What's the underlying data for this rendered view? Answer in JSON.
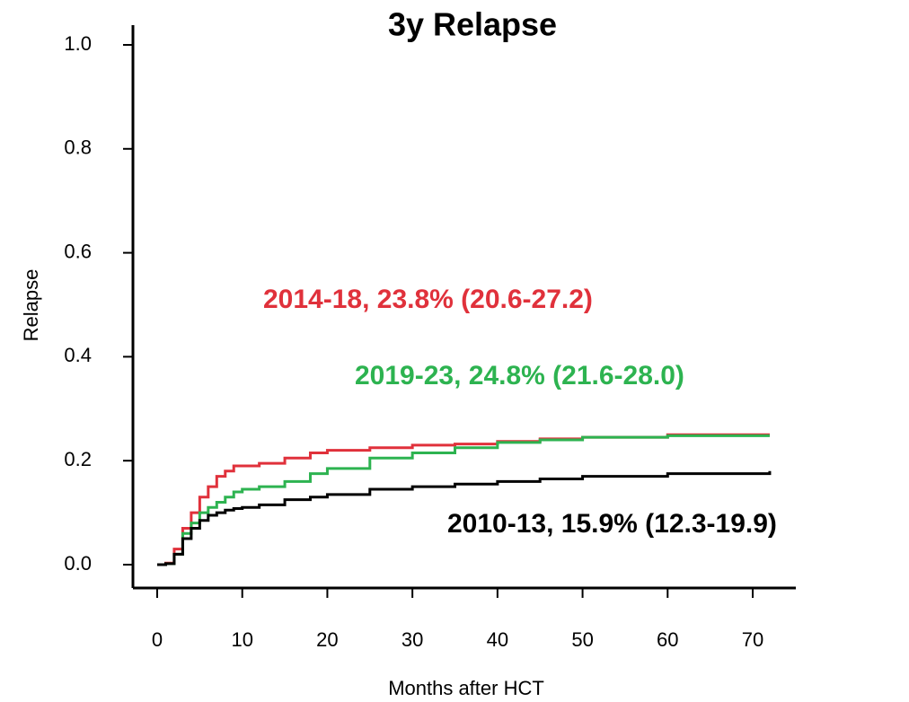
{
  "chart_data": {
    "type": "line",
    "title": "3y Relapse",
    "y_label": "Relapse",
    "x_label": "Months after HCT",
    "x": [
      0,
      1,
      2,
      3,
      4,
      5,
      6,
      7,
      8,
      9,
      10,
      12,
      15,
      18,
      20,
      25,
      30,
      35,
      40,
      45,
      50,
      60,
      72
    ],
    "series": [
      {
        "name": "2014-18, 23.8% (20.6-27.2)",
        "color": "#e0313b",
        "values": [
          0,
          0.003,
          0.03,
          0.07,
          0.1,
          0.13,
          0.15,
          0.17,
          0.18,
          0.19,
          0.19,
          0.195,
          0.205,
          0.215,
          0.22,
          0.225,
          0.23,
          0.232,
          0.237,
          0.242,
          0.245,
          0.25,
          0.25
        ]
      },
      {
        "name": "2019-23, 24.8% (21.6-28.0)",
        "color": "#2db350",
        "values": [
          0,
          0.002,
          0.02,
          0.06,
          0.08,
          0.1,
          0.11,
          0.12,
          0.13,
          0.14,
          0.145,
          0.15,
          0.16,
          0.175,
          0.185,
          0.205,
          0.215,
          0.225,
          0.235,
          0.24,
          0.245,
          0.248,
          0.248
        ]
      },
      {
        "name": "2010-13, 15.9% (12.3-19.9)",
        "color": "#000000",
        "values": [
          0,
          0.002,
          0.02,
          0.05,
          0.07,
          0.085,
          0.095,
          0.1,
          0.105,
          0.108,
          0.11,
          0.115,
          0.125,
          0.13,
          0.135,
          0.145,
          0.15,
          0.155,
          0.16,
          0.165,
          0.17,
          0.175,
          0.18
        ]
      }
    ],
    "xlim": [
      0,
      70
    ],
    "xticks": [
      0,
      10,
      20,
      30,
      40,
      50,
      60,
      70
    ],
    "ylim": [
      0,
      1
    ],
    "yticks": [
      {
        "value": 0,
        "label": "0.0"
      },
      0.2,
      0.4,
      0.6,
      0.8,
      {
        "value": 1,
        "label": "1.0"
      }
    ],
    "step": true
  }
}
